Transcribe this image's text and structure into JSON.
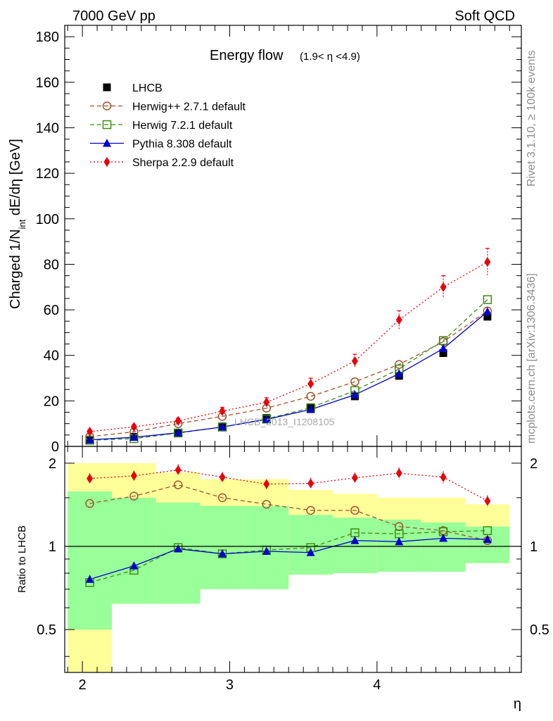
{
  "header": {
    "left": "7000 GeV pp",
    "right": "Soft QCD"
  },
  "side_text": {
    "rivet": "Rivet 3.1.10, ≥ 100k events",
    "mcplots": "mcplots.cern.ch [arXiv:1306.3436]"
  },
  "watermark": "LHCB_2013_I1208105",
  "chart_data": [
    {
      "type": "line",
      "title_main": "Energy flow",
      "title_sub": "(1.9< η <4.9)",
      "ylabel": "Charged 1/N_int dE/dη [GeV]",
      "ylabel_parts": {
        "pre": "Charged 1/N",
        "sub": "int",
        "post": " dE/dη [GeV]"
      },
      "ylim": [
        0,
        185
      ],
      "yticks": [
        "0",
        "20",
        "40",
        "60",
        "80",
        "100",
        "120",
        "140",
        "160",
        "180"
      ],
      "x": [
        2.05,
        2.35,
        2.65,
        2.95,
        3.25,
        3.55,
        3.85,
        4.15,
        4.45,
        4.75
      ],
      "series": [
        {
          "name": "LHCB",
          "color": "#000000",
          "marker": "square-filled",
          "line": "none",
          "values": [
            3.0,
            4.2,
            6.0,
            8.8,
            12.5,
            17.0,
            22.0,
            31.0,
            41.0,
            57.0
          ]
        },
        {
          "name": "Herwig++ 2.7.1 default",
          "color": "#a0522d",
          "marker": "circle-open",
          "line": "dashed",
          "values": [
            4.3,
            6.4,
            10.0,
            13.2,
            16.8,
            22.0,
            28.4,
            36.0,
            46.0,
            59.5
          ]
        },
        {
          "name": "Herwig 7.2.1 default",
          "color": "#3a8c10",
          "marker": "square-open",
          "line": "dashed",
          "values": [
            2.7,
            3.4,
            5.9,
            8.5,
            12.0,
            17.0,
            24.5,
            34.0,
            46.5,
            64.5
          ]
        },
        {
          "name": "Pythia 8.308 default",
          "color": "#0000cc",
          "marker": "triangle-filled",
          "line": "solid",
          "values": [
            2.9,
            4.0,
            6.0,
            8.5,
            11.9,
            16.2,
            22.7,
            31.9,
            43.0,
            59.2
          ]
        },
        {
          "name": "Sherpa 2.2.9 default",
          "color": "#e8000b",
          "marker": "diamond-filled",
          "line": "dotted",
          "values": [
            6.5,
            8.6,
            11.2,
            15.5,
            19.4,
            27.5,
            37.5,
            55.6,
            70.0,
            81.0
          ],
          "errors": [
            0.8,
            1.0,
            1.2,
            1.6,
            2.0,
            2.5,
            3.0,
            4.0,
            5.0,
            6.0
          ]
        }
      ]
    },
    {
      "type": "line",
      "ylabel": "Ratio to LHCB",
      "xlabel": "η",
      "scale": "log",
      "ylim": [
        0.35,
        2.3
      ],
      "yticks": [
        "0.5",
        "1",
        "2"
      ],
      "xticks": [
        "2",
        "3",
        "4"
      ],
      "xlim": [
        1.88,
        4.98
      ],
      "x": [
        2.05,
        2.35,
        2.65,
        2.95,
        3.25,
        3.55,
        3.85,
        4.15,
        4.45,
        4.75
      ],
      "bands": {
        "edges": [
          1.9,
          2.2,
          2.5,
          2.8,
          3.1,
          3.4,
          3.7,
          4.0,
          4.3,
          4.6,
          4.9
        ],
        "yellow_lo": [
          0.35,
          0.62,
          0.62,
          0.7,
          0.7,
          0.79,
          0.8,
          0.81,
          0.81,
          0.87
        ],
        "yellow_hi": [
          2.0,
          2.0,
          1.85,
          1.75,
          1.75,
          1.6,
          1.55,
          1.5,
          1.5,
          1.42
        ],
        "green_lo": [
          0.5,
          0.62,
          0.62,
          0.7,
          0.7,
          0.79,
          0.8,
          0.81,
          0.81,
          0.87
        ],
        "green_hi": [
          1.58,
          1.5,
          1.44,
          1.4,
          1.4,
          1.3,
          1.27,
          1.25,
          1.22,
          1.18
        ]
      },
      "series": [
        {
          "name": "Herwig++ 2.7.1 default",
          "values": [
            1.43,
            1.52,
            1.67,
            1.5,
            1.42,
            1.35,
            1.35,
            1.18,
            1.14,
            1.05
          ]
        },
        {
          "name": "Herwig 7.2.1 default",
          "values": [
            0.74,
            0.82,
            0.99,
            0.94,
            0.97,
            0.99,
            1.12,
            1.11,
            1.13,
            1.14
          ]
        },
        {
          "name": "Pythia 8.308 default",
          "values": [
            0.76,
            0.85,
            0.98,
            0.94,
            0.96,
            0.95,
            1.05,
            1.04,
            1.07,
            1.06
          ]
        },
        {
          "name": "Sherpa 2.2.9 default",
          "values": [
            1.76,
            1.8,
            1.89,
            1.78,
            1.68,
            1.69,
            1.77,
            1.84,
            1.78,
            1.46
          ],
          "errors": [
            0.08,
            0.08,
            0.09,
            0.08,
            0.07,
            0.08,
            0.08,
            0.09,
            0.09,
            0.07
          ]
        }
      ]
    }
  ]
}
